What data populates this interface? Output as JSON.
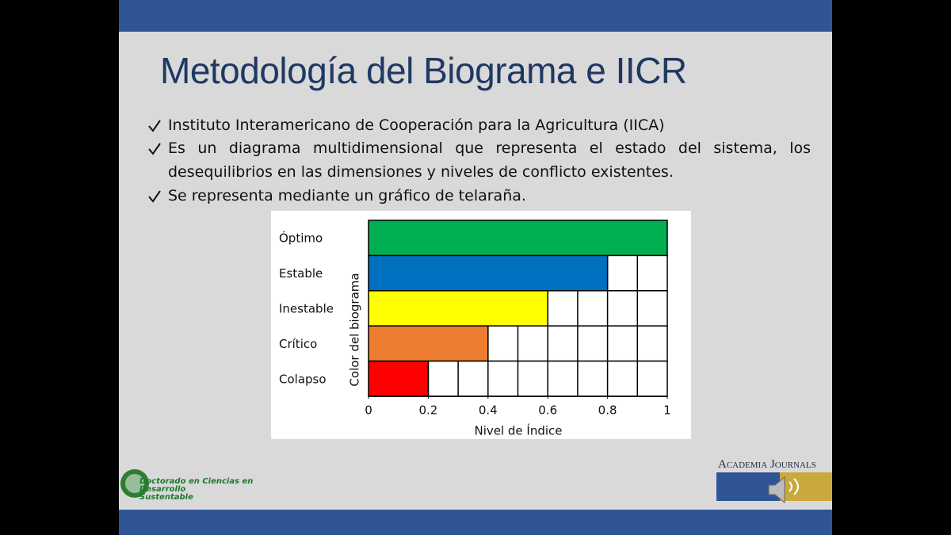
{
  "slide": {
    "title": "Metodología del Biograma e IICR",
    "bullets": [
      "Instituto Interamericano de Cooperación para la Agricultura (IICA)",
      "Es un diagrama multidimensional que representa el estado del sistema, los desequilibrios en las dimensiones y niveles de conflicto existentes.",
      "Se representa mediante un gráfico de telaraña."
    ],
    "logo_left": [
      "Doctorado en Ciencias en",
      "Desarrollo",
      "Sustentable"
    ],
    "logo_right": "Academia Journals"
  },
  "chart_data": {
    "type": "bar",
    "orientation": "horizontal",
    "categories": [
      "Óptimo",
      "Estable",
      "Inestable",
      "Crítico",
      "Colapso"
    ],
    "values": [
      1,
      0.8,
      0.6,
      0.4,
      0.2
    ],
    "colors": [
      "#00b050",
      "#0070c0",
      "#ffff00",
      "#ed7d31",
      "#ff0000"
    ],
    "xlabel": "Nivel de Índice",
    "ylabel": "Color del biograma",
    "xlim": [
      0,
      1
    ],
    "xticks": [
      0,
      0.2,
      0.4,
      0.6,
      0.8,
      1
    ],
    "xgrid_minor": [
      0.1,
      0.3,
      0.5,
      0.7,
      0.9
    ],
    "grid": true
  }
}
